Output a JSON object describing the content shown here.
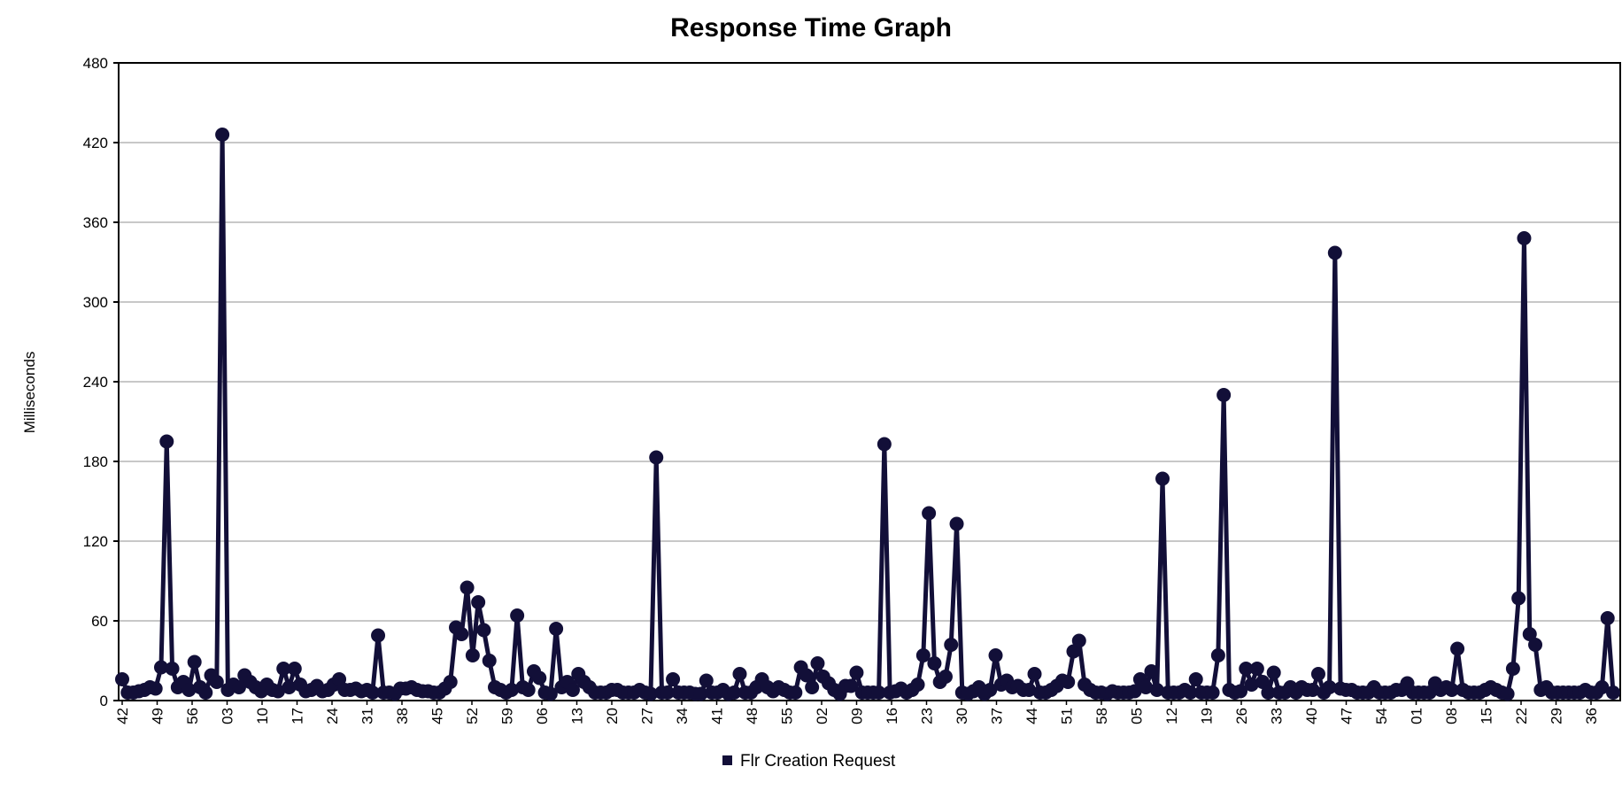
{
  "chart_data": {
    "type": "line",
    "title": "Response Time Graph",
    "xlabel": "",
    "ylabel": "Milliseconds",
    "ylim": [
      0,
      480
    ],
    "yticks": [
      0,
      60,
      120,
      180,
      240,
      300,
      360,
      420,
      480
    ],
    "grid": true,
    "legend_position": "bottom",
    "line_color": "#120f38",
    "xtick_labels": [
      "42",
      "49",
      "56",
      "03",
      "10",
      "17",
      "24",
      "31",
      "38",
      "45",
      "52",
      "59",
      "06",
      "13",
      "20",
      "27",
      "34",
      "41",
      "48",
      "55",
      "02",
      "09",
      "16",
      "23",
      "30",
      "37",
      "44",
      "51",
      "58",
      "05",
      "12",
      "19",
      "26",
      "33",
      "40",
      "47",
      "54",
      "01",
      "08",
      "15",
      "22",
      "29",
      "36"
    ],
    "series": [
      {
        "name": "Flr Creation Request",
        "values": [
          16,
          6,
          6,
          7,
          8,
          10,
          9,
          25,
          195,
          24,
          10,
          14,
          8,
          29,
          10,
          6,
          19,
          14,
          426,
          8,
          12,
          10,
          19,
          14,
          10,
          7,
          12,
          8,
          7,
          24,
          10,
          24,
          12,
          7,
          8,
          11,
          7,
          8,
          12,
          16,
          8,
          8,
          9,
          7,
          8,
          6,
          49,
          6,
          6,
          5,
          9,
          9,
          10,
          8,
          7,
          7,
          6,
          6,
          9,
          14,
          55,
          50,
          85,
          34,
          74,
          53,
          30,
          10,
          8,
          6,
          8,
          64,
          10,
          8,
          22,
          17,
          6,
          5,
          54,
          10,
          14,
          8,
          20,
          14,
          10,
          6,
          6,
          6,
          8,
          8,
          6,
          6,
          6,
          8,
          6,
          5,
          183,
          6,
          6,
          16,
          6,
          6,
          6,
          5,
          5,
          15,
          6,
          6,
          8,
          5,
          6,
          20,
          6,
          6,
          10,
          16,
          10,
          7,
          10,
          8,
          6,
          6,
          25,
          19,
          10,
          28,
          18,
          13,
          8,
          5,
          11,
          11,
          21,
          6,
          6,
          6,
          6,
          193,
          6,
          7,
          9,
          6,
          8,
          12,
          34,
          141,
          28,
          14,
          18,
          42,
          133,
          6,
          5,
          7,
          10,
          5,
          8,
          34,
          12,
          15,
          10,
          11,
          8,
          8,
          20,
          6,
          6,
          8,
          11,
          15,
          14,
          37,
          45,
          12,
          8,
          6,
          6,
          5,
          7,
          6,
          6,
          6,
          7,
          16,
          10,
          22,
          8,
          167,
          6,
          6,
          6,
          8,
          6,
          16,
          6,
          6,
          6,
          34,
          230,
          8,
          6,
          7,
          24,
          12,
          24,
          14,
          6,
          21,
          6,
          6,
          10,
          6,
          10,
          8,
          8,
          20,
          6,
          10,
          337,
          9,
          8,
          8,
          6,
          6,
          6,
          10,
          6,
          6,
          6,
          8,
          8,
          13,
          6,
          6,
          6,
          6,
          13,
          8,
          10,
          8,
          39,
          8,
          6,
          6,
          6,
          8,
          10,
          8,
          6,
          5,
          24,
          77,
          348,
          50,
          42,
          8,
          10,
          6,
          6,
          6,
          6,
          6,
          6,
          8,
          6,
          6,
          10,
          62,
          6
        ]
      }
    ]
  }
}
